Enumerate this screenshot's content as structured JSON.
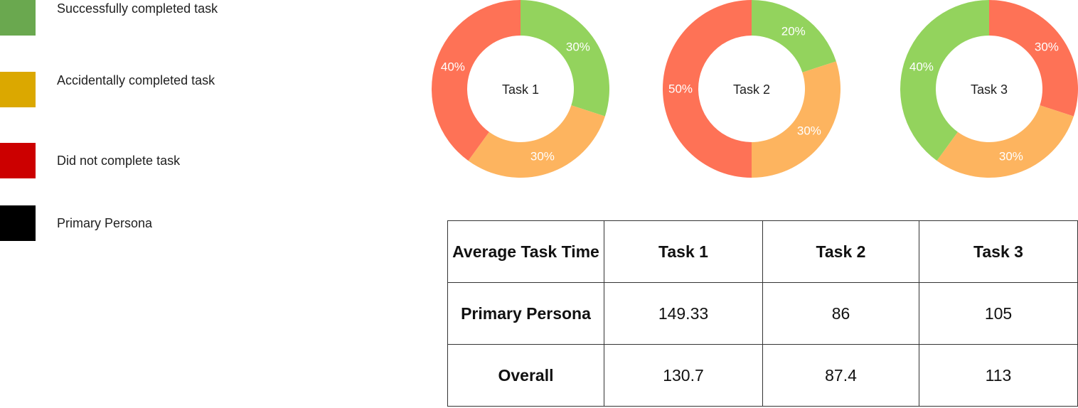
{
  "legend": [
    {
      "label": "Successfully completed task",
      "color": "#6aa84f"
    },
    {
      "label": "Accidentally completed task",
      "color": "#dba800"
    },
    {
      "label": "Did not complete task",
      "color": "#cc0000"
    },
    {
      "label": "Primary Persona",
      "color": "#000000"
    }
  ],
  "chart_data": [
    {
      "type": "pie",
      "center_label": "Task 1",
      "slices": [
        {
          "value": 30,
          "label": "30%",
          "color": "#93d35d"
        },
        {
          "value": 30,
          "label": "30%",
          "color": "#fdb45f"
        },
        {
          "value": 40,
          "label": "40%",
          "color": "#fe7256"
        }
      ]
    },
    {
      "type": "pie",
      "center_label": "Task 2",
      "slices": [
        {
          "value": 20,
          "label": "20%",
          "color": "#93d35d"
        },
        {
          "value": 30,
          "label": "30%",
          "color": "#fdb45f"
        },
        {
          "value": 50,
          "label": "50%",
          "color": "#fe7256"
        }
      ]
    },
    {
      "type": "pie",
      "center_label": "Task 3",
      "slices": [
        {
          "value": 30,
          "label": "30%",
          "color": "#fe7256"
        },
        {
          "value": 30,
          "label": "30%",
          "color": "#fdb45f"
        },
        {
          "value": 40,
          "label": "40%",
          "color": "#93d35d"
        }
      ]
    }
  ],
  "table": {
    "corner": "Average Task Time",
    "columns": [
      "Task 1",
      "Task 2",
      "Task 3"
    ],
    "rows": [
      {
        "label": "Primary Persona",
        "values": [
          "149.33",
          "86",
          "105"
        ]
      },
      {
        "label": "Overall",
        "values": [
          "130.7",
          "87.4",
          "113"
        ]
      }
    ]
  }
}
